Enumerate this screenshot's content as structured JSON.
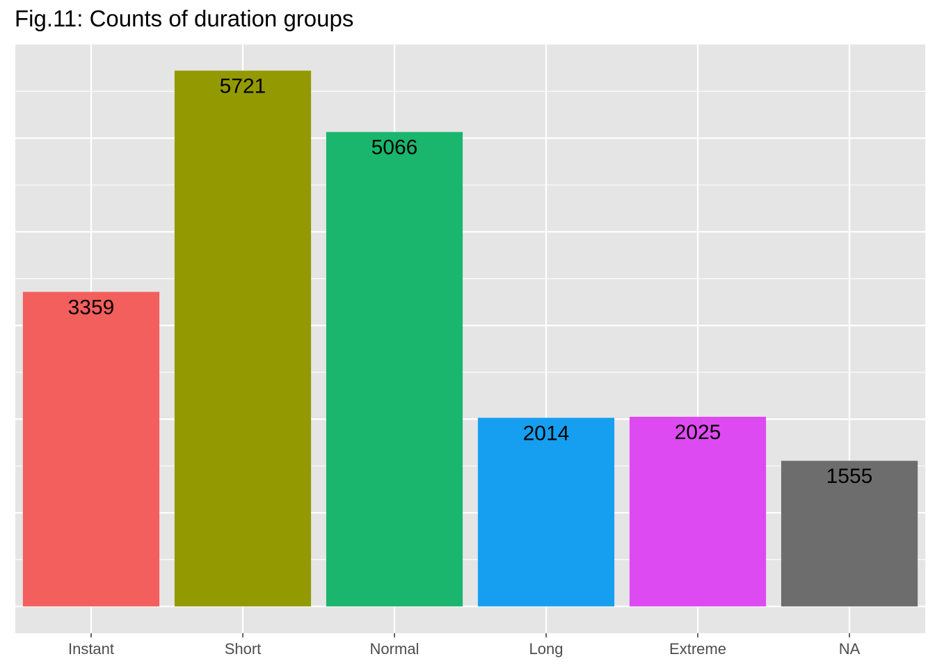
{
  "chart_data": {
    "type": "bar",
    "title": "Fig.11: Counts of duration groups",
    "categories": [
      "Instant",
      "Short",
      "Normal",
      "Long",
      "Extreme",
      "NA"
    ],
    "values": [
      3359,
      5721,
      5066,
      2014,
      2025,
      1555
    ],
    "colors": [
      "#F35F5C",
      "#939900",
      "#1AB66D",
      "#169FF0",
      "#DE4AF1",
      "#6D6D6D"
    ],
    "data_labels": [
      "3359",
      "5721",
      "5066",
      "2014",
      "2025",
      "1555"
    ],
    "xlabel": "",
    "ylabel": "",
    "ylim": [
      -286,
      6000
    ],
    "y_ticks": [
      0,
      1000,
      2000,
      3000,
      4000,
      5000
    ],
    "y_tick_labels_visible": false,
    "grid": true,
    "panel_background": "#E5E5E5",
    "grid_color": "#FFFFFF",
    "legend": "none"
  }
}
